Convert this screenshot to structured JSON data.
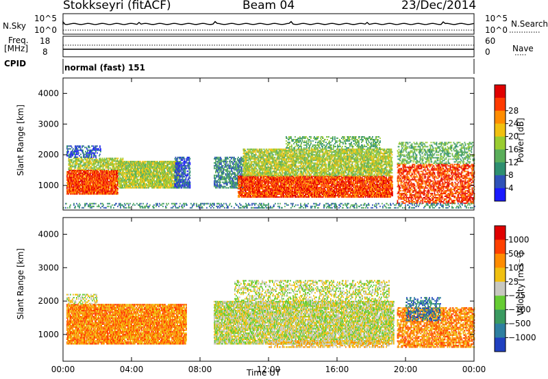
{
  "header": {
    "station": "Stokkseyri (fitACF)",
    "beam": "Beam 04",
    "date": "23/Dec/2014"
  },
  "top_panel": {
    "nsky_label": "N.Sky",
    "nsky_tick_top": "10^5",
    "nsky_tick_bottom": "10^0",
    "nsearch_label": "N.Search",
    "nsearch_tick_top": "10^5",
    "nsearch_tick_bottom": "10^0",
    "freq_label_1": "Freq.",
    "freq_label_2": "[MHz]",
    "freq_tick_top": "18",
    "freq_tick_bottom": "8",
    "nave_label": "Nave",
    "nave_tick_top": "60",
    "nave_tick_bottom": "0",
    "cpid_label": "CPID",
    "cpid_value": "normal (fast) 151"
  },
  "chart_data": [
    {
      "type": "heatmap",
      "panel": "power",
      "ylabel": "Slant Range [km]",
      "xlabel": "Time UT",
      "xlim_hours": [
        0,
        24
      ],
      "ylim": [
        200,
        4500
      ],
      "y_ticks": [
        "1000",
        "2000",
        "3000",
        "4000"
      ],
      "x_ticks": [
        "00:00",
        "04:00",
        "08:00",
        "12:00",
        "16:00",
        "20:00",
        "00:00"
      ],
      "colorbar": {
        "label": "Power [dB]",
        "ticks": [
          "4",
          "8",
          "12",
          "16",
          "20",
          "24",
          "28"
        ],
        "colors": [
          "#1a1aff",
          "#2f52b8",
          "#2e8f70",
          "#5aae5a",
          "#9acc30",
          "#f0c010",
          "#ff8c00",
          "#ff3a00",
          "#e00000"
        ]
      }
    },
    {
      "type": "heatmap",
      "panel": "velocity",
      "ylabel": "Slant Range [km]",
      "xlabel": "Time UT",
      "xlim_hours": [
        0,
        24
      ],
      "ylim": [
        200,
        4500
      ],
      "y_ticks": [
        "1000",
        "2000",
        "3000",
        "4000"
      ],
      "x_ticks": [
        "00:00",
        "04:00",
        "08:00",
        "12:00",
        "16:00",
        "20:00",
        "00:00"
      ],
      "colorbar": {
        "label": "Velocity [m s⁻¹]",
        "ticks": [
          "1000",
          "500",
          "100",
          "25",
          "−25",
          "−100",
          "−500",
          "−1000"
        ],
        "colors": [
          "#2040c0",
          "#2e7fa0",
          "#3a9a60",
          "#66cc33",
          "#c8c8c0",
          "#f0c010",
          "#ff8c00",
          "#ff4000",
          "#e00000"
        ]
      }
    }
  ]
}
